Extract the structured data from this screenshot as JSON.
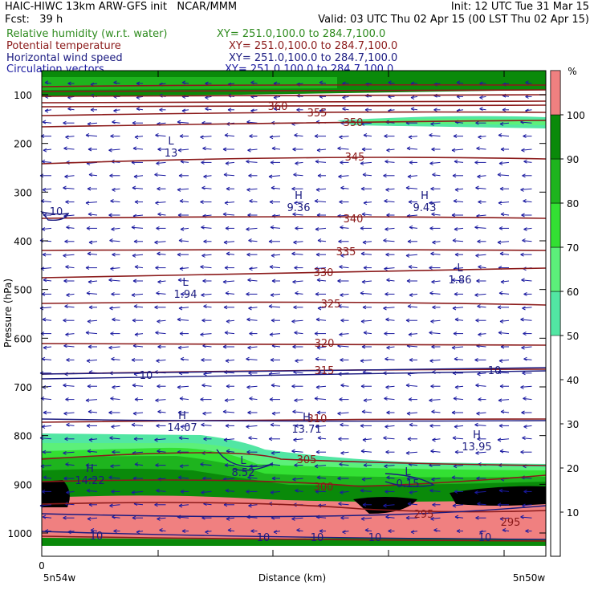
{
  "header": {
    "line1_left": "HAIC-HIWC 13km ARW-GFS init   NCAR/MMM",
    "line1_right": "Init: 12 UTC Tue 31 Mar 15",
    "line2_left": "Fcst:   39 h",
    "line2_right": "Valid: 03 UTC Thu 02 Apr 15 (00 LST Thu 02 Apr 15)",
    "fields": [
      {
        "name": "Relative humidity (w.r.t. water)",
        "xy": "XY= 251.0,100.0 to 284.7,100.0",
        "color": "#2e8b1e"
      },
      {
        "name": "Potential temperature",
        "xy": "XY= 251.0,100.0 to 284.7,100.0",
        "color": "#8b1a1a"
      },
      {
        "name": "Horizontal wind speed",
        "xy": "XY= 251.0,100.0 to 284.7,100.0",
        "color": "#1a1a80"
      },
      {
        "name": "Circulation vectors",
        "xy": "XY= 251.0,100.0 to 284.7,100.0",
        "color": "#1a1aa0"
      }
    ]
  },
  "chart_data": {
    "type": "cross-section",
    "ylabel": "Pressure (hPa)",
    "xlabel": "Distance (km)",
    "x_start_tick": "0",
    "left_label": "5n54w",
    "right_label": "5n50w",
    "y_ticks": [
      100,
      200,
      300,
      400,
      500,
      600,
      700,
      800,
      900,
      1000
    ],
    "colorbar": {
      "unit": "%",
      "ticks": [
        10,
        20,
        30,
        40,
        50,
        60,
        70,
        80,
        90,
        100
      ],
      "bands": [
        {
          "from": 50,
          "to": 60,
          "color": "#52e6a3"
        },
        {
          "from": 60,
          "to": 70,
          "color": "#5cf07a"
        },
        {
          "from": 70,
          "to": 80,
          "color": "#33e033"
        },
        {
          "from": 80,
          "to": 90,
          "color": "#1eb41e"
        },
        {
          "from": 90,
          "to": 100,
          "color": "#0a8a0a"
        },
        {
          "from": 100,
          "to": 110,
          "color": "#f08080"
        }
      ]
    },
    "theta_labels": [
      "360",
      "355",
      "350",
      "345",
      "340",
      "335",
      "330",
      "325",
      "320",
      "315",
      "310",
      "305",
      "300",
      "295",
      "295"
    ],
    "wind_labels": [
      "10",
      "10",
      "10",
      "10",
      "10",
      "10",
      "10",
      "10"
    ],
    "extrema": [
      {
        "kind": "L",
        "value": "13"
      },
      {
        "kind": "H",
        "value": "9.36"
      },
      {
        "kind": "H",
        "value": "9.43"
      },
      {
        "kind": "L",
        "value": "1.94"
      },
      {
        "kind": "L",
        "value": "1.86"
      },
      {
        "kind": "H",
        "value": "14.07"
      },
      {
        "kind": "H",
        "value": "13.71"
      },
      {
        "kind": "H",
        "value": "13.95"
      },
      {
        "kind": "L",
        "value": "8.52"
      },
      {
        "kind": "H",
        "value": "14.22"
      },
      {
        "kind": "L",
        "value": "0.15"
      }
    ]
  }
}
